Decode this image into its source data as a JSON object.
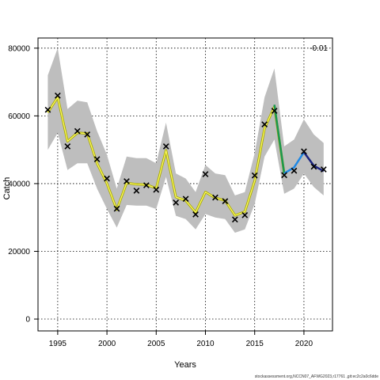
{
  "chart_data": {
    "type": "line",
    "xlabel": "Years",
    "ylabel": "Catch",
    "annotation": "-0.01",
    "footer": "stockassessment.org,NCCN07_AFWG2023,r17761 ,git:ec2c2a0c6dde",
    "xlim": [
      1993.0,
      2022.9
    ],
    "ylim": [
      -3500,
      83000
    ],
    "x_ticks": [
      1995,
      2000,
      2005,
      2010,
      2015,
      2020
    ],
    "y_ticks": [
      0,
      20000,
      40000,
      60000,
      80000
    ],
    "grid": true,
    "colors": {
      "band": "#bebebe",
      "fit_main": "#a8a800",
      "fit_highlight": "#ffff66",
      "retro_1": "#1a9850",
      "retro_2": "#1e88e5",
      "retro_3": "#1a237e",
      "observed": "#000000"
    },
    "observed": {
      "x": [
        1994,
        1995,
        1996,
        1997,
        1998,
        1999,
        2000,
        2001,
        2002,
        2003,
        2004,
        2005,
        2006,
        2007,
        2008,
        2009,
        2010,
        2011,
        2012,
        2013,
        2014,
        2015,
        2016,
        2017,
        2018,
        2019,
        2020,
        2021,
        2022
      ],
      "y": [
        61800,
        66000,
        51000,
        55500,
        54500,
        47200,
        41500,
        32600,
        40700,
        37900,
        39500,
        38200,
        51000,
        34400,
        35500,
        30900,
        42800,
        35900,
        34800,
        29400,
        30700,
        42400,
        57500,
        61500,
        42500,
        43800,
        49500,
        45000,
        44200
      ]
    },
    "fit": {
      "x": [
        1994,
        1995,
        1996,
        1997,
        1998,
        1999,
        2000,
        2001,
        2002,
        2003,
        2004,
        2005,
        2006,
        2007,
        2008,
        2009,
        2010,
        2011,
        2012,
        2013,
        2014,
        2015,
        2016,
        2017,
        2018
      ],
      "y": [
        61000,
        65500,
        52500,
        55000,
        54800,
        46000,
        40000,
        32300,
        40200,
        39800,
        39700,
        38600,
        49800,
        36000,
        35000,
        31500,
        37500,
        35800,
        35000,
        30600,
        31700,
        40800,
        56300,
        62700,
        43000
      ]
    },
    "fit_upper": [
      72000,
      80000,
      62000,
      64500,
      64000,
      55500,
      48500,
      38500,
      48000,
      47500,
      47500,
      46000,
      58000,
      43000,
      41500,
      37500,
      45500,
      43000,
      42500,
      36500,
      37500,
      49000,
      65500,
      74000,
      51000
    ],
    "fit_lower": [
      50000,
      55000,
      44000,
      46000,
      46000,
      38500,
      32500,
      27000,
      33700,
      33500,
      33500,
      32500,
      42000,
      30500,
      29500,
      26500,
      31000,
      30000,
      29500,
      25500,
      26500,
      34000,
      48000,
      53000,
      37000
    ],
    "retro_peels": [
      {
        "x": [
          2017,
          2018
        ],
        "y": [
          63300,
          43000
        ]
      },
      {
        "x": [
          2018,
          2019,
          2020
        ],
        "y": [
          43000,
          44800,
          49300
        ]
      },
      {
        "x": [
          2020,
          2021,
          2022
        ],
        "y": [
          49300,
          45300,
          43700
        ]
      }
    ],
    "retro_upper": [
      51000,
      53000,
      59000,
      54500,
      52000
    ],
    "retro_lower": [
      37000,
      38500,
      43000,
      39000,
      36500
    ],
    "retro_band_x": [
      2018,
      2019,
      2020,
      2021,
      2022
    ]
  }
}
